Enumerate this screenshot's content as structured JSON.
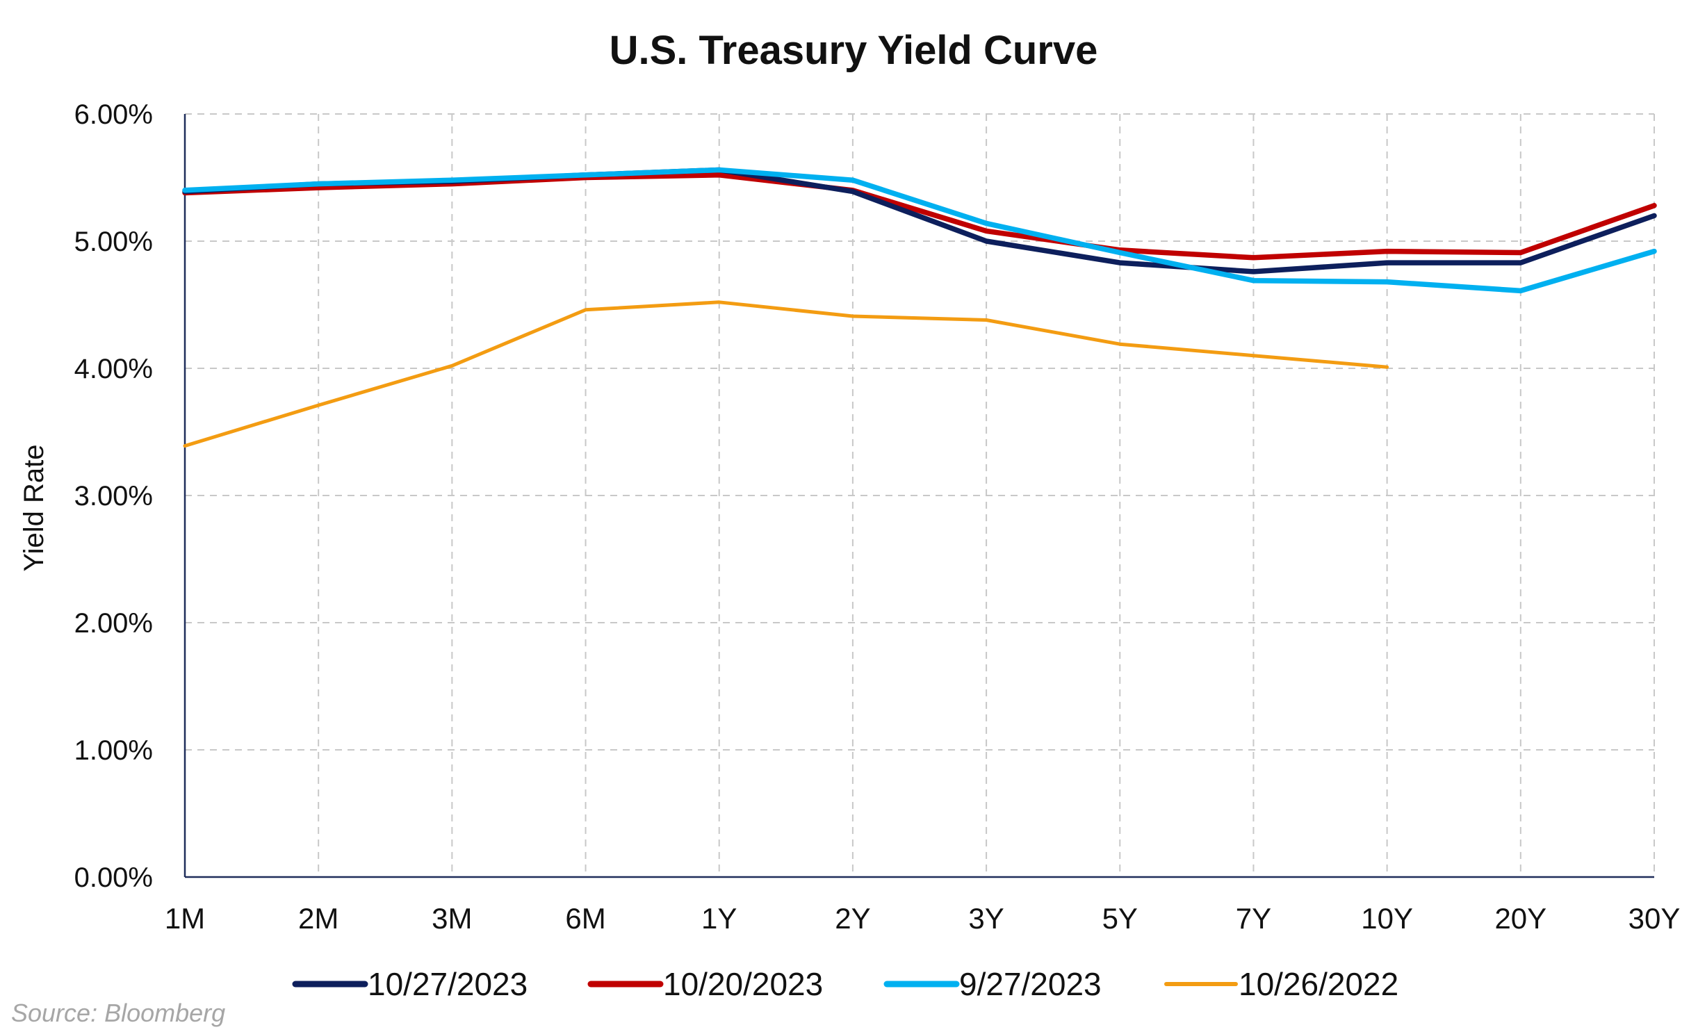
{
  "chart_data": {
    "type": "line",
    "title": "U.S. Treasury Yield Curve",
    "xlabel": "",
    "ylabel": "Yield Rate",
    "categories": [
      "1M",
      "2M",
      "3M",
      "6M",
      "1Y",
      "2Y",
      "3Y",
      "5Y",
      "7Y",
      "10Y",
      "20Y",
      "30Y"
    ],
    "yticks": [
      "0.00%",
      "1.00%",
      "2.00%",
      "3.00%",
      "4.00%",
      "5.00%",
      "6.00%"
    ],
    "ylim": [
      0,
      6
    ],
    "grid": true,
    "legend_position": "bottom",
    "source": "Source: Bloomberg",
    "series": [
      {
        "name": "10/27/2023",
        "color": "#0d1f5c",
        "values": [
          5.39,
          5.45,
          5.47,
          5.52,
          5.56,
          5.39,
          5.0,
          4.83,
          4.76,
          4.83,
          4.83,
          5.2
        ]
      },
      {
        "name": "10/20/2023",
        "color": "#c00000",
        "values": [
          5.38,
          5.42,
          5.45,
          5.5,
          5.52,
          5.4,
          5.08,
          4.93,
          4.87,
          4.92,
          4.91,
          5.28
        ]
      },
      {
        "name": "9/27/2023",
        "color": "#00b0f0",
        "values": [
          5.4,
          5.45,
          5.48,
          5.52,
          5.56,
          5.48,
          5.14,
          4.91,
          4.69,
          4.68,
          4.61,
          4.92
        ]
      },
      {
        "name": "10/26/2022",
        "color": "#f39c12",
        "values": [
          3.39,
          3.71,
          4.02,
          4.46,
          4.52,
          4.41,
          4.38,
          4.19,
          4.1,
          4.01,
          null,
          null
        ]
      }
    ]
  }
}
